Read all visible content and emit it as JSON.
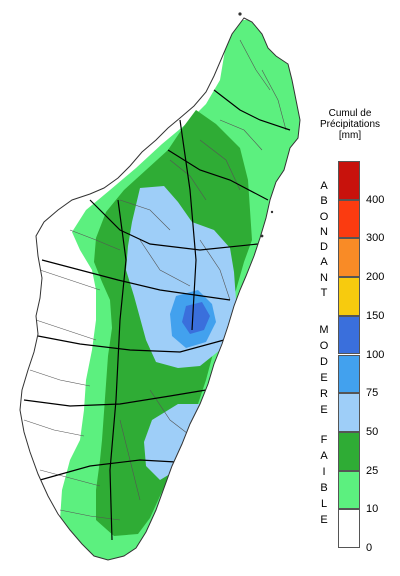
{
  "legend": {
    "title_lines": [
      "Cumul de",
      "Précipitations",
      "[mm]"
    ],
    "ticks": [
      "0",
      "10",
      "25",
      "50",
      "75",
      "100",
      "150",
      "200",
      "300",
      "400"
    ],
    "classes": [
      {
        "from": 0,
        "to": 10,
        "color": "#ffffff"
      },
      {
        "from": 10,
        "to": 25,
        "color": "#5cf07f"
      },
      {
        "from": 25,
        "to": 50,
        "color": "#2fac35"
      },
      {
        "from": 50,
        "to": 75,
        "color": "#9ecef8"
      },
      {
        "from": 75,
        "to": 100,
        "color": "#42a1ee"
      },
      {
        "from": 100,
        "to": 150,
        "color": "#3a6fdc"
      },
      {
        "from": 150,
        "to": 200,
        "color": "#f7cb0e"
      },
      {
        "from": 200,
        "to": 300,
        "color": "#f98b26"
      },
      {
        "from": 300,
        "to": 400,
        "color": "#fb3b10"
      },
      {
        "from": 400,
        "to": null,
        "color": "#c8120c"
      }
    ],
    "categories": [
      {
        "word": "ABONDANT",
        "letters": [
          "A",
          "B",
          "O",
          "N",
          "D",
          "A",
          "N",
          "T"
        ]
      },
      {
        "word": "MODERE",
        "letters": [
          "M",
          "O",
          "D",
          "E",
          "R",
          "E"
        ]
      },
      {
        "word": "FAIBLE",
        "letters": [
          "F",
          "A",
          "I",
          "B",
          "L",
          "E"
        ]
      }
    ]
  },
  "colors": {
    "boundary_region": "#000000",
    "boundary_district": "#555555",
    "outline": "#333333"
  }
}
